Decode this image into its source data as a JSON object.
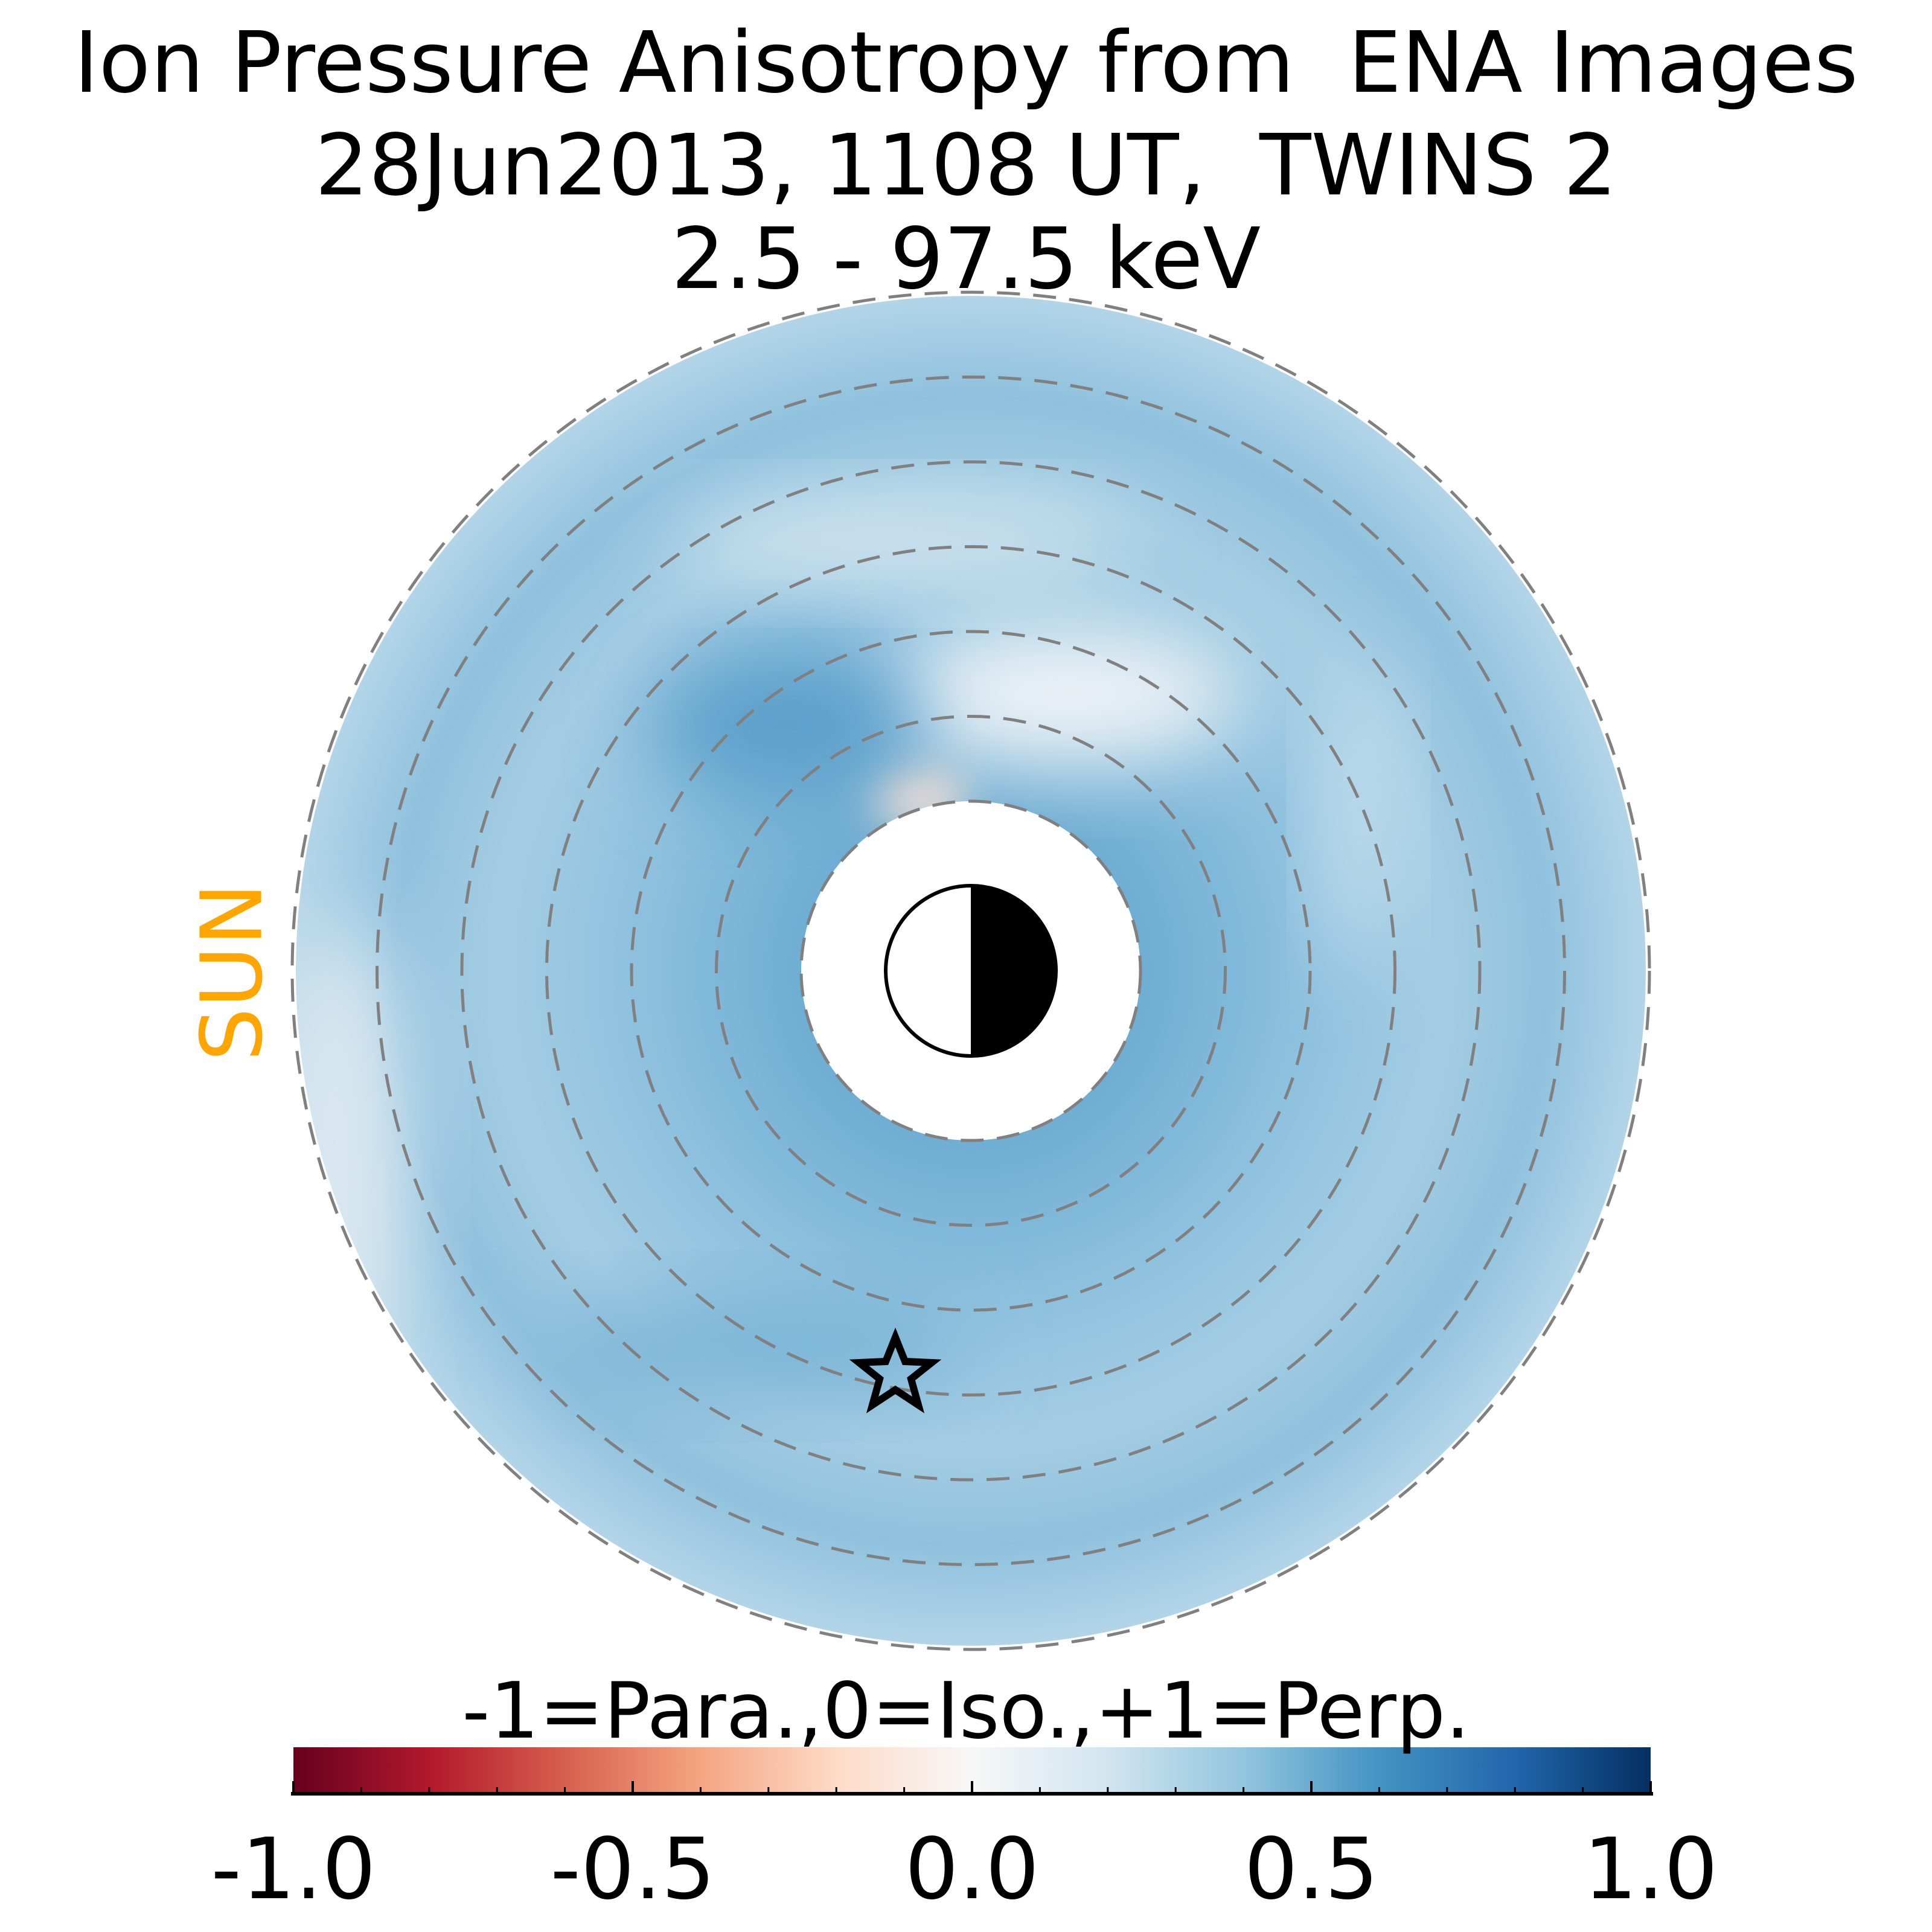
{
  "title": {
    "line1": "Ion Pressure Anisotropy from  ENA Images",
    "line2": "28Jun2013, 1108 UT,  TWINS 2",
    "line3": "2.5 - 97.5 keV"
  },
  "sun_label": "SUN",
  "colors": {
    "sun": "#FFA500",
    "ring": "#808080",
    "field": "#9ecae1"
  },
  "chart_data": {
    "type": "heatmap",
    "projection": "polar equatorial map",
    "title": "Ion Pressure Anisotropy from  ENA Images / 28Jun2013, 1108 UT,  TWINS 2 / 2.5 - 97.5 keV",
    "colorbar": {
      "label": "-1=Para.,0=Iso.,+1=Perp.",
      "range": [
        -1.0,
        1.0
      ],
      "colormap": "RdBu",
      "ticks": [
        -1.0,
        -0.5,
        0.0,
        0.5,
        1.0
      ],
      "tick_labels": [
        "-1.0",
        "-0.5",
        "0.0",
        "0.5",
        "1.0"
      ],
      "minor_step": 0.1
    },
    "rings_count": 7,
    "typical_value": 0.35,
    "min_value_region": "just sunward-north of inner boundary, ~ -0.1",
    "markers": [
      "earth day/night symbol at center",
      "star marker (spacecraft footprint)"
    ]
  }
}
